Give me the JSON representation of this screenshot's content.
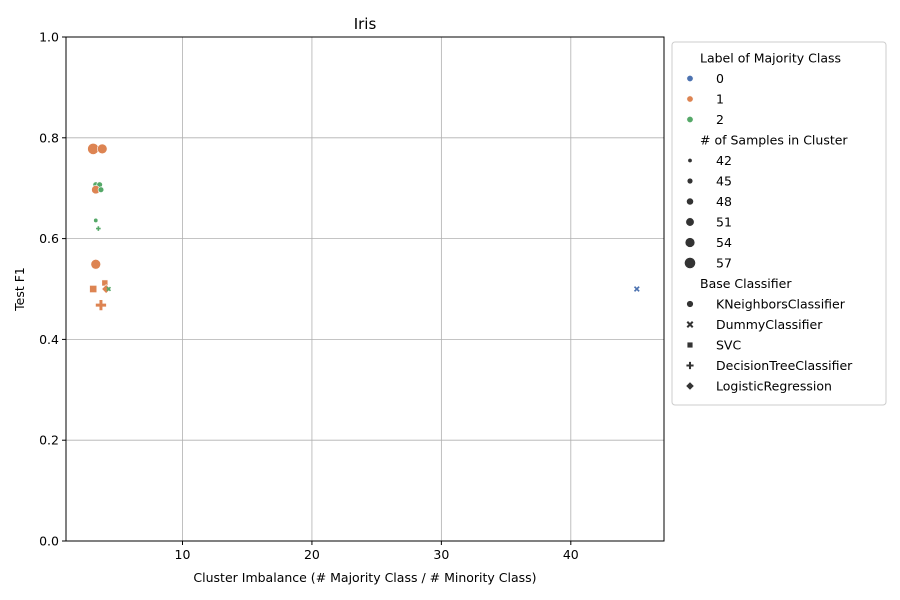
{
  "chart_data": {
    "type": "scatter",
    "title": "Iris",
    "xlabel": "Cluster Imbalance (# Majority Class / # Minority Class)",
    "ylabel": "Test F1",
    "xlim": [
      1,
      47.2
    ],
    "ylim": [
      0.0,
      1.0
    ],
    "xticks": [
      10,
      20,
      30,
      40
    ],
    "yticks": [
      0.0,
      0.2,
      0.4,
      0.6,
      0.8,
      1.0
    ],
    "xtick_labels": [
      "10",
      "20",
      "30",
      "40"
    ],
    "ytick_labels": [
      "0.0",
      "0.2",
      "0.4",
      "0.6",
      "0.8",
      "1.0"
    ],
    "grid": true,
    "legend_position": "outside-right",
    "legend": {
      "hue_title": "Label of Majority Class",
      "hue": [
        {
          "label": "0",
          "color": "#4c72b0"
        },
        {
          "label": "1",
          "color": "#dd8452"
        },
        {
          "label": "2",
          "color": "#55a868"
        }
      ],
      "size_title": "# of Samples in Cluster",
      "sizes": [
        {
          "label": "42",
          "value": 42
        },
        {
          "label": "45",
          "value": 45
        },
        {
          "label": "48",
          "value": 48
        },
        {
          "label": "51",
          "value": 51
        },
        {
          "label": "54",
          "value": 54
        },
        {
          "label": "57",
          "value": 57
        }
      ],
      "style_title": "Base Classifier",
      "styles": [
        {
          "label": "KNeighborsClassifier",
          "marker": "circle"
        },
        {
          "label": "DummyClassifier",
          "marker": "x"
        },
        {
          "label": "SVC",
          "marker": "square"
        },
        {
          "label": "DecisionTreeClassifier",
          "marker": "plus"
        },
        {
          "label": "LogisticRegression",
          "marker": "diamond"
        }
      ]
    },
    "points": [
      {
        "x": 3.1,
        "y": 0.778,
        "hue": "1",
        "size": 57,
        "marker": "circle"
      },
      {
        "x": 3.8,
        "y": 0.778,
        "hue": "1",
        "size": 54,
        "marker": "circle"
      },
      {
        "x": 3.3,
        "y": 0.707,
        "hue": "2",
        "size": 45,
        "marker": "circle"
      },
      {
        "x": 3.6,
        "y": 0.707,
        "hue": "2",
        "size": 45,
        "marker": "circle"
      },
      {
        "x": 3.3,
        "y": 0.697,
        "hue": "1",
        "size": 51,
        "marker": "circle"
      },
      {
        "x": 3.7,
        "y": 0.697,
        "hue": "2",
        "size": 45,
        "marker": "circle"
      },
      {
        "x": 3.3,
        "y": 0.636,
        "hue": "2",
        "size": 42,
        "marker": "circle"
      },
      {
        "x": 3.5,
        "y": 0.62,
        "hue": "2",
        "size": 42,
        "marker": "plus"
      },
      {
        "x": 3.3,
        "y": 0.549,
        "hue": "1",
        "size": 54,
        "marker": "circle"
      },
      {
        "x": 4.0,
        "y": 0.512,
        "hue": "1",
        "size": 48,
        "marker": "square"
      },
      {
        "x": 3.1,
        "y": 0.5,
        "hue": "1",
        "size": 51,
        "marker": "square"
      },
      {
        "x": 4.1,
        "y": 0.5,
        "hue": "1",
        "size": 48,
        "marker": "diamond"
      },
      {
        "x": 4.3,
        "y": 0.5,
        "hue": "2",
        "size": 42,
        "marker": "x"
      },
      {
        "x": 3.7,
        "y": 0.468,
        "hue": "1",
        "size": 54,
        "marker": "plus"
      },
      {
        "x": 45.1,
        "y": 0.5,
        "hue": "0",
        "size": 45,
        "marker": "x"
      }
    ]
  }
}
